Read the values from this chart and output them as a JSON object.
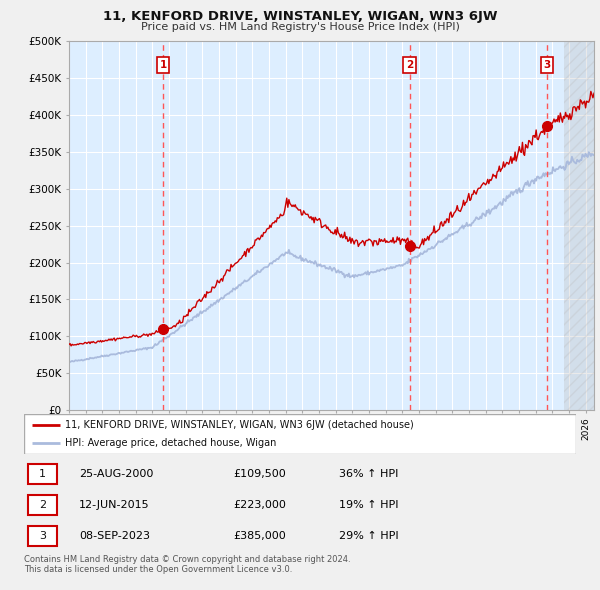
{
  "title": "11, KENFORD DRIVE, WINSTANLEY, WIGAN, WN3 6JW",
  "subtitle": "Price paid vs. HM Land Registry's House Price Index (HPI)",
  "ylim": [
    0,
    500000
  ],
  "yticks": [
    0,
    50000,
    100000,
    150000,
    200000,
    250000,
    300000,
    350000,
    400000,
    450000,
    500000
  ],
  "ytick_labels": [
    "£0",
    "£50K",
    "£100K",
    "£150K",
    "£200K",
    "£250K",
    "£300K",
    "£350K",
    "£400K",
    "£450K",
    "£500K"
  ],
  "xlim_start": 1995.0,
  "xlim_end": 2026.5,
  "plot_bg_color": "#ddeeff",
  "grid_color": "#ffffff",
  "hpi_line_color": "#aabbdd",
  "price_line_color": "#cc0000",
  "sale_marker_color": "#cc0000",
  "dashed_line_color": "#ff5555",
  "purchases": [
    {
      "label": "1",
      "date_year": 2000.65,
      "price": 109500
    },
    {
      "label": "2",
      "date_year": 2015.44,
      "price": 223000
    },
    {
      "label": "3",
      "date_year": 2023.69,
      "price": 385000
    }
  ],
  "legend_property_label": "11, KENFORD DRIVE, WINSTANLEY, WIGAN, WN3 6JW (detached house)",
  "legend_hpi_label": "HPI: Average price, detached house, Wigan",
  "table_rows": [
    {
      "num": "1",
      "date": "25-AUG-2000",
      "price": "£109,500",
      "change": "36% ↑ HPI"
    },
    {
      "num": "2",
      "date": "12-JUN-2015",
      "price": "£223,000",
      "change": "19% ↑ HPI"
    },
    {
      "num": "3",
      "date": "08-SEP-2023",
      "price": "£385,000",
      "change": "29% ↑ HPI"
    }
  ],
  "footer": "Contains HM Land Registry data © Crown copyright and database right 2024.\nThis data is licensed under the Open Government Licence v3.0."
}
